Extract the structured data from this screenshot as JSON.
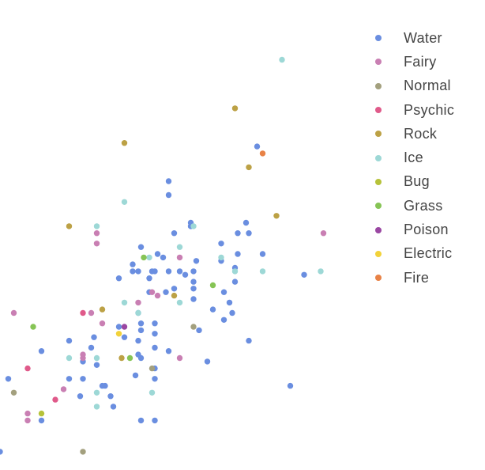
{
  "chart_data": {
    "type": "scatter",
    "title": "",
    "xlabel": "",
    "ylabel": "",
    "xlim": [
      0,
      12
    ],
    "ylim": [
      0,
      12
    ],
    "grid": false,
    "legend_position": "right",
    "series": [
      {
        "name": "Water",
        "color": "#6a8ee0",
        "points": [
          [
            0,
            0.3
          ],
          [
            0.3,
            2.4
          ],
          [
            1.5,
            3.2
          ],
          [
            1.5,
            1.2
          ],
          [
            2.5,
            3.5
          ],
          [
            2.5,
            2.4
          ],
          [
            2.9,
            1.9
          ],
          [
            3.0,
            2.4
          ],
          [
            3.0,
            2.9
          ],
          [
            3.3,
            3.3
          ],
          [
            3.4,
            3.6
          ],
          [
            3.5,
            2.8
          ],
          [
            3.7,
            2.2
          ],
          [
            3.8,
            2.2
          ],
          [
            4.0,
            1.9
          ],
          [
            4.1,
            1.6
          ],
          [
            4.3,
            5.3
          ],
          [
            4.3,
            3.9
          ],
          [
            4.5,
            3.6
          ],
          [
            4.8,
            5.5
          ],
          [
            4.8,
            5.7
          ],
          [
            4.9,
            2.5
          ],
          [
            5.0,
            3.1
          ],
          [
            5.0,
            3.5
          ],
          [
            5.0,
            4.3
          ],
          [
            5.0,
            5.5
          ],
          [
            5.1,
            3.8
          ],
          [
            5.1,
            4.0
          ],
          [
            5.1,
            6.2
          ],
          [
            5.1,
            3.0
          ],
          [
            5.1,
            1.2
          ],
          [
            5.4,
            5.3
          ],
          [
            5.4,
            4.9
          ],
          [
            5.5,
            5.5
          ],
          [
            5.6,
            3.3
          ],
          [
            5.6,
            1.2
          ],
          [
            5.6,
            2.4
          ],
          [
            5.6,
            2.7
          ],
          [
            5.6,
            3.7
          ],
          [
            5.6,
            4.0
          ],
          [
            5.6,
            5.5
          ],
          [
            5.7,
            6.0
          ],
          [
            5.9,
            5.9
          ],
          [
            6.0,
            4.9
          ],
          [
            6.1,
            5.5
          ],
          [
            6.1,
            3.2
          ],
          [
            6.1,
            7.7
          ],
          [
            6.1,
            8.1
          ],
          [
            6.3,
            6.6
          ],
          [
            6.3,
            5.0
          ],
          [
            6.5,
            5.5
          ],
          [
            6.7,
            5.4
          ],
          [
            6.9,
            6.8
          ],
          [
            6.9,
            6.9
          ],
          [
            7.0,
            5.0
          ],
          [
            7.0,
            5.5
          ],
          [
            7.0,
            5.2
          ],
          [
            7.0,
            4.7
          ],
          [
            7.1,
            5.8
          ],
          [
            7.2,
            3.8
          ],
          [
            7.5,
            2.9
          ],
          [
            7.7,
            4.4
          ],
          [
            8.0,
            6.3
          ],
          [
            8.0,
            5.8
          ],
          [
            8.1,
            4.9
          ],
          [
            8.1,
            4.1
          ],
          [
            8.3,
            4.6
          ],
          [
            8.4,
            4.3
          ],
          [
            8.5,
            5.2
          ],
          [
            8.5,
            5.6
          ],
          [
            8.6,
            6.0
          ],
          [
            8.6,
            6.6
          ],
          [
            8.9,
            6.9
          ],
          [
            9.0,
            6.6
          ],
          [
            9.0,
            3.5
          ],
          [
            9.3,
            9.1
          ],
          [
            9.5,
            6.0
          ],
          [
            10.5,
            2.2
          ],
          [
            11.0,
            5.4
          ]
        ]
      },
      {
        "name": "Fairy",
        "color": "#c97fb3",
        "points": [
          [
            0.5,
            4.3
          ],
          [
            1.0,
            1.4
          ],
          [
            1.0,
            1.2
          ],
          [
            2.3,
            2.1
          ],
          [
            3.0,
            3.0
          ],
          [
            3.0,
            3.1
          ],
          [
            3.3,
            4.3
          ],
          [
            3.5,
            6.3
          ],
          [
            3.5,
            6.6
          ],
          [
            3.7,
            4.0
          ],
          [
            5.0,
            4.6
          ],
          [
            5.5,
            4.9
          ],
          [
            5.7,
            4.8
          ],
          [
            6.5,
            3.0
          ],
          [
            6.5,
            5.9
          ],
          [
            11.7,
            6.6
          ]
        ]
      },
      {
        "name": "Normal",
        "color": "#a3a07e",
        "points": [
          [
            0.5,
            2.0
          ],
          [
            3.0,
            0.3
          ],
          [
            5.5,
            2.7
          ],
          [
            7.0,
            3.9
          ]
        ]
      },
      {
        "name": "Psychic",
        "color": "#e05a8a",
        "points": [
          [
            1.0,
            2.7
          ],
          [
            2.0,
            1.8
          ],
          [
            3.0,
            4.3
          ]
        ]
      },
      {
        "name": "Rock",
        "color": "#bca145",
        "points": [
          [
            2.5,
            6.8
          ],
          [
            3.7,
            4.4
          ],
          [
            4.4,
            3.0
          ],
          [
            4.5,
            9.2
          ],
          [
            6.3,
            4.8
          ],
          [
            8.5,
            10.2
          ],
          [
            9.0,
            8.5
          ],
          [
            10.0,
            7.1
          ]
        ]
      },
      {
        "name": "Ice",
        "color": "#9dd8d6",
        "points": [
          [
            2.5,
            3.0
          ],
          [
            3.5,
            1.6
          ],
          [
            3.5,
            2.0
          ],
          [
            3.5,
            3.0
          ],
          [
            3.5,
            6.8
          ],
          [
            4.5,
            4.6
          ],
          [
            4.5,
            7.5
          ],
          [
            5.0,
            4.3
          ],
          [
            5.4,
            5.9
          ],
          [
            5.5,
            2.0
          ],
          [
            6.5,
            4.6
          ],
          [
            6.5,
            6.2
          ],
          [
            7.0,
            6.8
          ],
          [
            8.0,
            5.9
          ],
          [
            8.5,
            5.5
          ],
          [
            9.5,
            5.5
          ],
          [
            10.2,
            11.6
          ],
          [
            11.6,
            5.5
          ]
        ]
      },
      {
        "name": "Bug",
        "color": "#b6c23a",
        "points": [
          [
            1.5,
            1.4
          ]
        ]
      },
      {
        "name": "Grass",
        "color": "#86c455",
        "points": [
          [
            1.2,
            3.9
          ],
          [
            4.7,
            3.0
          ],
          [
            5.2,
            5.9
          ],
          [
            7.7,
            5.1
          ]
        ]
      },
      {
        "name": "Poison",
        "color": "#9a47a2",
        "points": [
          [
            4.5,
            3.9
          ]
        ]
      },
      {
        "name": "Electric",
        "color": "#f2d23a",
        "points": [
          [
            4.3,
            3.7
          ]
        ]
      },
      {
        "name": "Fire",
        "color": "#e88246",
        "points": [
          [
            9.5,
            8.9
          ]
        ]
      }
    ]
  }
}
